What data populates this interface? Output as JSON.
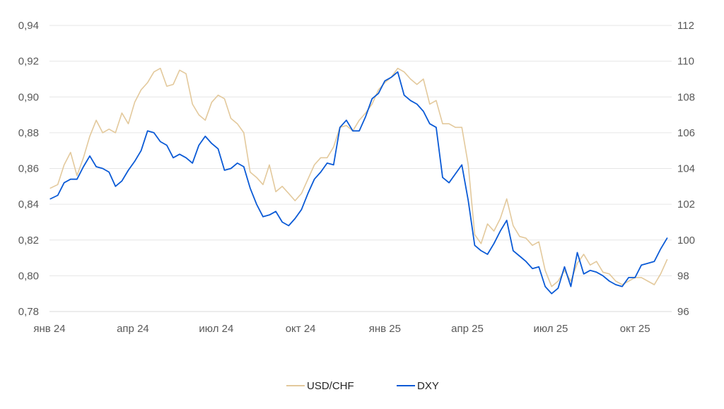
{
  "chart_data": {
    "type": "line",
    "title": "",
    "xlabel": "",
    "ylabel": "",
    "x_ticks": [
      "янв 24",
      "апр 24",
      "июл 24",
      "окт 24",
      "янв 25",
      "апр 25",
      "июл 25",
      "окт 25"
    ],
    "y_left": {
      "min": 0.78,
      "max": 0.94,
      "step": 0.02,
      "ticks": [
        "0,78",
        "0,80",
        "0,82",
        "0,84",
        "0,86",
        "0,88",
        "0,90",
        "0,92",
        "0,94"
      ]
    },
    "y_right": {
      "min": 96,
      "max": 112,
      "step": 2,
      "ticks": [
        "96",
        "98",
        "100",
        "102",
        "104",
        "106",
        "108",
        "110",
        "112"
      ]
    },
    "grid": true,
    "legend_position": "bottom",
    "series": [
      {
        "name": "USD/CHF",
        "axis": "left",
        "color": "#e3c99c",
        "x": [
          "2024-01-02",
          "2024-01-10",
          "2024-01-17",
          "2024-01-24",
          "2024-01-31",
          "2024-02-07",
          "2024-02-14",
          "2024-02-21",
          "2024-02-28",
          "2024-03-06",
          "2024-03-13",
          "2024-03-20",
          "2024-03-27",
          "2024-04-03",
          "2024-04-10",
          "2024-04-17",
          "2024-04-24",
          "2024-05-01",
          "2024-05-08",
          "2024-05-15",
          "2024-05-22",
          "2024-05-29",
          "2024-06-05",
          "2024-06-12",
          "2024-06-19",
          "2024-06-26",
          "2024-07-03",
          "2024-07-10",
          "2024-07-17",
          "2024-07-24",
          "2024-07-31",
          "2024-08-07",
          "2024-08-14",
          "2024-08-21",
          "2024-08-28",
          "2024-09-04",
          "2024-09-11",
          "2024-09-18",
          "2024-09-25",
          "2024-10-02",
          "2024-10-09",
          "2024-10-16",
          "2024-10-23",
          "2024-10-30",
          "2024-11-06",
          "2024-11-13",
          "2024-11-20",
          "2024-11-27",
          "2024-12-04",
          "2024-12-11",
          "2024-12-18",
          "2024-12-25",
          "2025-01-01",
          "2025-01-08",
          "2025-01-15",
          "2025-01-22",
          "2025-01-29",
          "2025-02-05",
          "2025-02-12",
          "2025-02-19",
          "2025-02-26",
          "2025-03-05",
          "2025-03-12",
          "2025-03-19",
          "2025-03-26",
          "2025-04-02",
          "2025-04-09",
          "2025-04-16",
          "2025-04-23",
          "2025-04-30",
          "2025-05-07",
          "2025-05-14",
          "2025-05-21",
          "2025-05-28",
          "2025-06-04",
          "2025-06-11",
          "2025-06-18",
          "2025-06-25",
          "2025-07-02",
          "2025-07-09",
          "2025-07-16",
          "2025-07-23",
          "2025-07-30",
          "2025-08-06",
          "2025-08-13",
          "2025-08-20",
          "2025-08-27",
          "2025-09-03",
          "2025-09-10",
          "2025-09-17",
          "2025-09-24",
          "2025-10-01",
          "2025-10-08",
          "2025-10-15",
          "2025-10-22",
          "2025-10-29",
          "2025-11-05"
        ],
        "values": [
          0.849,
          0.851,
          0.862,
          0.869,
          0.856,
          0.866,
          0.878,
          0.887,
          0.88,
          0.882,
          0.88,
          0.891,
          0.885,
          0.897,
          0.904,
          0.908,
          0.914,
          0.916,
          0.906,
          0.907,
          0.915,
          0.913,
          0.896,
          0.89,
          0.887,
          0.897,
          0.901,
          0.899,
          0.888,
          0.885,
          0.88,
          0.858,
          0.855,
          0.851,
          0.862,
          0.847,
          0.85,
          0.846,
          0.842,
          0.846,
          0.854,
          0.862,
          0.866,
          0.866,
          0.872,
          0.883,
          0.884,
          0.881,
          0.887,
          0.891,
          0.896,
          0.904,
          0.908,
          0.911,
          0.916,
          0.914,
          0.91,
          0.907,
          0.91,
          0.896,
          0.898,
          0.885,
          0.885,
          0.883,
          0.883,
          0.862,
          0.823,
          0.818,
          0.829,
          0.825,
          0.832,
          0.843,
          0.828,
          0.822,
          0.821,
          0.817,
          0.819,
          0.803,
          0.794,
          0.797,
          0.803,
          0.797,
          0.807,
          0.812,
          0.806,
          0.808,
          0.802,
          0.801,
          0.797,
          0.795,
          0.797,
          0.799,
          0.799,
          0.797,
          0.795,
          0.801,
          0.809
        ]
      },
      {
        "name": "DXY",
        "axis": "right",
        "color": "#0a5ad6",
        "x": [
          "2024-01-02",
          "2024-01-10",
          "2024-01-17",
          "2024-01-24",
          "2024-01-31",
          "2024-02-07",
          "2024-02-14",
          "2024-02-21",
          "2024-02-28",
          "2024-03-06",
          "2024-03-13",
          "2024-03-20",
          "2024-03-27",
          "2024-04-03",
          "2024-04-10",
          "2024-04-17",
          "2024-04-24",
          "2024-05-01",
          "2024-05-08",
          "2024-05-15",
          "2024-05-22",
          "2024-05-29",
          "2024-06-05",
          "2024-06-12",
          "2024-06-19",
          "2024-06-26",
          "2024-07-03",
          "2024-07-10",
          "2024-07-17",
          "2024-07-24",
          "2024-07-31",
          "2024-08-07",
          "2024-08-14",
          "2024-08-21",
          "2024-08-28",
          "2024-09-04",
          "2024-09-11",
          "2024-09-18",
          "2024-09-25",
          "2024-10-02",
          "2024-10-09",
          "2024-10-16",
          "2024-10-23",
          "2024-10-30",
          "2024-11-06",
          "2024-11-13",
          "2024-11-20",
          "2024-11-27",
          "2024-12-04",
          "2024-12-11",
          "2024-12-18",
          "2024-12-25",
          "2025-01-01",
          "2025-01-08",
          "2025-01-15",
          "2025-01-22",
          "2025-01-29",
          "2025-02-05",
          "2025-02-12",
          "2025-02-19",
          "2025-02-26",
          "2025-03-05",
          "2025-03-12",
          "2025-03-19",
          "2025-03-26",
          "2025-04-02",
          "2025-04-09",
          "2025-04-16",
          "2025-04-23",
          "2025-04-30",
          "2025-05-07",
          "2025-05-14",
          "2025-05-21",
          "2025-05-28",
          "2025-06-04",
          "2025-06-11",
          "2025-06-18",
          "2025-06-25",
          "2025-07-02",
          "2025-07-09",
          "2025-07-16",
          "2025-07-23",
          "2025-07-30",
          "2025-08-06",
          "2025-08-13",
          "2025-08-20",
          "2025-08-27",
          "2025-09-03",
          "2025-09-10",
          "2025-09-17",
          "2025-09-24",
          "2025-10-01",
          "2025-10-08",
          "2025-10-15",
          "2025-10-22",
          "2025-10-29",
          "2025-11-05"
        ],
        "values": [
          102.3,
          102.5,
          103.2,
          103.4,
          103.4,
          104.1,
          104.7,
          104.1,
          104.0,
          103.8,
          103.0,
          103.3,
          103.9,
          104.4,
          105.0,
          106.1,
          106.0,
          105.5,
          105.3,
          104.6,
          104.8,
          104.6,
          104.3,
          105.3,
          105.8,
          105.4,
          105.1,
          103.9,
          104.0,
          104.3,
          104.1,
          102.9,
          102.0,
          101.3,
          101.4,
          101.6,
          101.0,
          100.8,
          101.2,
          101.7,
          102.6,
          103.4,
          103.8,
          104.3,
          104.2,
          106.3,
          106.7,
          106.1,
          106.1,
          106.9,
          107.9,
          108.2,
          108.9,
          109.1,
          109.4,
          108.1,
          107.8,
          107.6,
          107.2,
          106.5,
          106.3,
          103.5,
          103.2,
          103.7,
          104.2,
          102.2,
          99.7,
          99.4,
          99.2,
          99.8,
          100.5,
          101.1,
          99.4,
          99.1,
          98.8,
          98.4,
          98.5,
          97.4,
          97.0,
          97.3,
          98.5,
          97.4,
          99.3,
          98.1,
          98.3,
          98.2,
          98.0,
          97.7,
          97.5,
          97.4,
          97.9,
          97.9,
          98.6,
          98.7,
          98.8,
          99.5,
          100.1
        ]
      }
    ]
  }
}
